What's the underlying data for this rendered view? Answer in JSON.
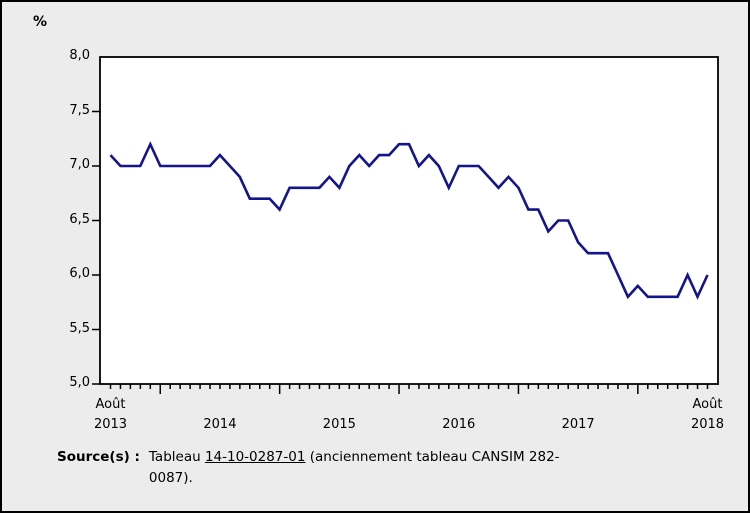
{
  "page": {
    "unit_label": "%"
  },
  "source": {
    "label": "Source(s) :",
    "prefix": "Tableau ",
    "link_text": "14-10-0287-01",
    "after_link_line1": " (anciennement tableau CANSIM 282-",
    "line2": "0087)."
  },
  "chart_data": {
    "type": "line",
    "title": "",
    "xlabel": "",
    "ylabel": "%",
    "ylim": [
      5.0,
      8.0
    ],
    "ytick_step": 0.5,
    "grid": "off",
    "legend": "none",
    "line_color": "#14148c",
    "plot_bg": "#ffffff",
    "outer_bg": "#ececec",
    "y_tick_labels": [
      "8,0",
      "7,5",
      "7,0",
      "6,5",
      "6,0",
      "5,5",
      "5,0"
    ],
    "x_axis_labels": [
      {
        "lines": [
          "Août",
          "2013"
        ],
        "month_index": 0
      },
      {
        "lines": [
          "2014"
        ],
        "month_index": 11
      },
      {
        "lines": [
          "2015"
        ],
        "month_index": 23
      },
      {
        "lines": [
          "2016"
        ],
        "month_index": 35
      },
      {
        "lines": [
          "2017"
        ],
        "month_index": 47
      },
      {
        "lines": [
          "Août",
          "2018"
        ],
        "month_index": 60
      }
    ],
    "x": [
      "2013-08",
      "2013-09",
      "2013-10",
      "2013-11",
      "2013-12",
      "2014-01",
      "2014-02",
      "2014-03",
      "2014-04",
      "2014-05",
      "2014-06",
      "2014-07",
      "2014-08",
      "2014-09",
      "2014-10",
      "2014-11",
      "2014-12",
      "2015-01",
      "2015-02",
      "2015-03",
      "2015-04",
      "2015-05",
      "2015-06",
      "2015-07",
      "2015-08",
      "2015-09",
      "2015-10",
      "2015-11",
      "2015-12",
      "2016-01",
      "2016-02",
      "2016-03",
      "2016-04",
      "2016-05",
      "2016-06",
      "2016-07",
      "2016-08",
      "2016-09",
      "2016-10",
      "2016-11",
      "2016-12",
      "2017-01",
      "2017-02",
      "2017-03",
      "2017-04",
      "2017-05",
      "2017-06",
      "2017-07",
      "2017-08",
      "2017-09",
      "2017-10",
      "2017-11",
      "2017-12",
      "2018-01",
      "2018-02",
      "2018-03",
      "2018-04",
      "2018-05",
      "2018-06",
      "2018-07",
      "2018-08"
    ],
    "values": [
      7.1,
      7.0,
      7.0,
      7.0,
      7.2,
      7.0,
      7.0,
      7.0,
      7.0,
      7.0,
      7.0,
      7.1,
      7.0,
      6.9,
      6.7,
      6.7,
      6.7,
      6.6,
      6.8,
      6.8,
      6.8,
      6.8,
      6.9,
      6.8,
      7.0,
      7.1,
      7.0,
      7.1,
      7.1,
      7.2,
      7.2,
      7.0,
      7.1,
      7.0,
      6.8,
      7.0,
      7.0,
      7.0,
      6.9,
      6.8,
      6.9,
      6.8,
      6.6,
      6.6,
      6.4,
      6.5,
      6.5,
      6.3,
      6.2,
      6.2,
      6.2,
      6.0,
      5.8,
      5.9,
      5.8,
      5.8,
      5.8,
      5.8,
      6.0,
      5.8,
      6.0
    ]
  }
}
